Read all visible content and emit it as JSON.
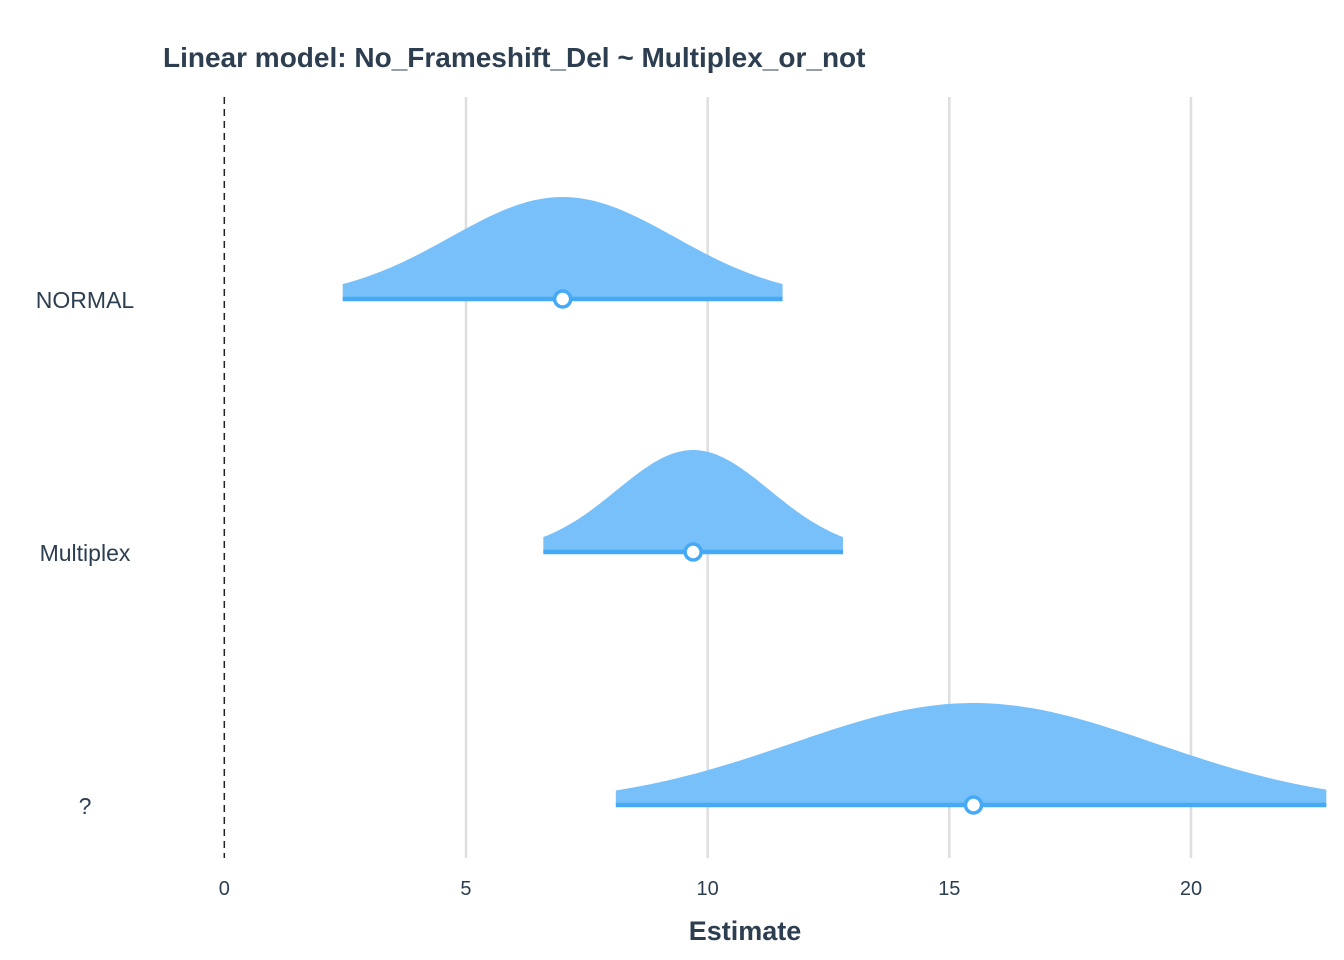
{
  "chart_data": {
    "type": "forest",
    "title": "Linear model: No_Frameshift_Del ~ Multiplex_or_not",
    "xlabel": "Estimate",
    "ylabel": "",
    "xlim": [
      -4.5,
      23
    ],
    "xticks": [
      0,
      5,
      10,
      15,
      20
    ],
    "reference_line": 0,
    "grid": "vertical major",
    "color": "#45a9f5",
    "fill_color": "#78c0f9",
    "rows": [
      {
        "label": "NORMAL",
        "estimate": 7.0,
        "ci_low": 2.45,
        "ci_high": 11.55
      },
      {
        "label": "Multiplex",
        "estimate": 9.7,
        "ci_low": 6.6,
        "ci_high": 12.8
      },
      {
        "label": "?",
        "estimate": 15.5,
        "ci_low": 8.1,
        "ci_high": 22.8
      }
    ]
  }
}
